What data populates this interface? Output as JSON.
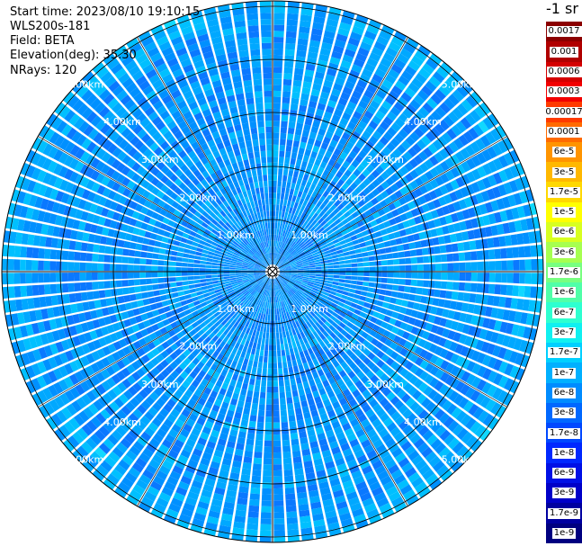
{
  "info": {
    "start_time": "Start time: 2023/08/10 19:10:15",
    "instrument": "WLS200s-181",
    "field": "Field: BETA",
    "elevation": "Elevation(deg): 35.30",
    "nrays": "NRays: 120"
  },
  "range_labels": [
    "1.00km",
    "2.00km",
    "3.00km",
    "4.00km",
    "5.00km"
  ],
  "colorbar": {
    "title": "-1 sr",
    "labels": [
      "0.0017",
      "0.001",
      "0.0006",
      "0.0003",
      "0.00017",
      "0.0001",
      "6e-5",
      "3e-5",
      "1.7e-5",
      "1e-5",
      "6e-6",
      "3e-6",
      "1.7e-6",
      "1e-6",
      "6e-7",
      "3e-7",
      "1.7e-7",
      "1e-7",
      "6e-8",
      "3e-8",
      "1.7e-8",
      "1e-8",
      "6e-9",
      "3e-9",
      "1.7e-9",
      "1e-9"
    ],
    "colors": [
      "#8b0000",
      "#b00000",
      "#d40000",
      "#f20000",
      "#ff3a00",
      "#ff6a00",
      "#ff9400",
      "#ffb800",
      "#ffd800",
      "#ffff00",
      "#d8ff20",
      "#a6ff50",
      "#78ff80",
      "#50ffa8",
      "#2effd0",
      "#10f0f0",
      "#00d0ff",
      "#00b0ff",
      "#008cff",
      "#0068ff",
      "#0048ff",
      "#0028ff",
      "#0010e6",
      "#0000c8",
      "#0000a0",
      "#000080"
    ]
  }
}
